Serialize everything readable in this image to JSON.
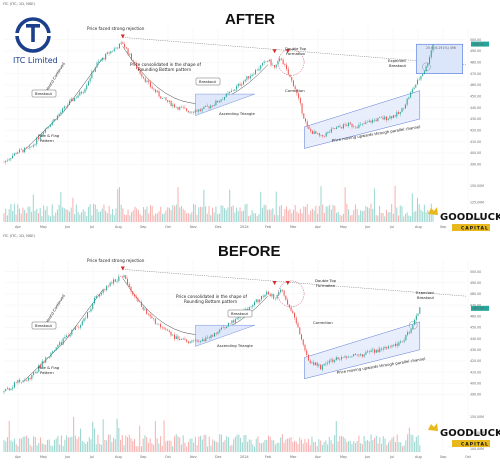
{
  "brand": {
    "logo_name": "itc-logo",
    "logo_color": "#1c3f8c",
    "company_name": "ITC Limited",
    "watermark_brand": "GOODLUCK",
    "watermark_sub": "CAPITAL",
    "watermark_color": "#e8b91c"
  },
  "colors": {
    "up": "#26a69a",
    "down": "#ef5350",
    "channel_fill": "#dfe7fb",
    "channel_line": "#5b7bd6",
    "guide_line": "#222222",
    "signal": "#d62828"
  },
  "chart_data": [
    {
      "type": "candlestick",
      "title": "AFTER",
      "header": "ITC (ITC, 1D, NSE)",
      "x_ticks": [
        "Apr",
        "May",
        "Jun",
        "Jul",
        "Aug",
        "Sep",
        "Oct",
        "Nov",
        "Dec",
        "2024",
        "Feb",
        "Mar",
        "Apr",
        "May",
        "Jun",
        "Jul",
        "Aug",
        "Sep",
        "Oct"
      ],
      "price_ticks": [
        "500.00",
        "490.00",
        "480.00",
        "470.00",
        "460.00",
        "450.00",
        "440.00",
        "430.00",
        "420.00",
        "410.00",
        "400.00",
        "390.00"
      ],
      "volume_ticks": [
        "150.00M",
        "125.00M",
        "100.00M"
      ],
      "ylim": [
        385,
        505
      ],
      "current_price_label": "496.40",
      "target_box_label": "25.6 (6.291%) 496",
      "annotations": {
        "rejection": "Price faced strong rejection",
        "rounding_line1": "Price consolidated in the shape of",
        "rounding_line2": "Rounding Bottom pattern",
        "double_top_line1": "Double Top",
        "double_top_line2": "Formation",
        "uptrend": "Uptrend Continued",
        "breakout": "Breakout",
        "pole_flag_line1": "Pole & Flag",
        "pole_flag_line2": "Pattern",
        "ascending_triangle": "Ascending Triangle",
        "correction": "Correction",
        "channel": "Price moving upwards through parallel channel",
        "expected_line1": "Expected",
        "expected_line2": "Breakout"
      },
      "price_path": [
        [
          0,
          392
        ],
        [
          2,
          401
        ],
        [
          4,
          404
        ],
        [
          6,
          420
        ],
        [
          8,
          432
        ],
        [
          10,
          445
        ],
        [
          12,
          455
        ],
        [
          14,
          478
        ],
        [
          16,
          489
        ],
        [
          18,
          497
        ],
        [
          20,
          476
        ],
        [
          22,
          460
        ],
        [
          24,
          448
        ],
        [
          26,
          441
        ],
        [
          28,
          437
        ],
        [
          30,
          438
        ],
        [
          32,
          444
        ],
        [
          34,
          452
        ],
        [
          36,
          462
        ],
        [
          38,
          472
        ],
        [
          40,
          482
        ],
        [
          41,
          475
        ],
        [
          42,
          484
        ],
        [
          43,
          470
        ],
        [
          44,
          459
        ],
        [
          46,
          421
        ],
        [
          48,
          414
        ],
        [
          50,
          421
        ],
        [
          52,
          425
        ],
        [
          54,
          424
        ],
        [
          56,
          429
        ],
        [
          58,
          431
        ],
        [
          60,
          435
        ],
        [
          62,
          457
        ],
        [
          64,
          476
        ],
        [
          65,
          496
        ]
      ]
    },
    {
      "type": "candlestick",
      "title": "BEFORE",
      "header": "ITC (ITC, 1D, NSE)",
      "x_ticks": [
        "Apr",
        "May",
        "Jun",
        "Jul",
        "Aug",
        "Sep",
        "Oct",
        "Nov",
        "Dec",
        "2024",
        "Feb",
        "Mar",
        "Apr",
        "May",
        "Jun",
        "Jul",
        "Aug",
        "Sep",
        "Oct"
      ],
      "price_ticks": [
        "500.00",
        "490.00",
        "480.00",
        "470.00",
        "460.00",
        "450.00",
        "440.00",
        "430.00",
        "420.00",
        "410.00",
        "400.00",
        "390.00"
      ],
      "volume_ticks": [
        "150.00M",
        "125.00M",
        "100.00M"
      ],
      "ylim": [
        385,
        505
      ],
      "current_price_label": "467.40",
      "annotations": {
        "rejection": "Price faced strong rejection",
        "rounding_line1": "Price consolidated in the shape of",
        "rounding_line2": "Rounding Bottom pattern",
        "double_top_line1": "Double Top",
        "double_top_line2": "Formation",
        "uptrend": "Uptrend Continued",
        "breakout": "Breakout",
        "pole_flag_line1": "Pole & Flag",
        "pole_flag_line2": "Pattern",
        "ascending_triangle": "Ascending Triangle",
        "correction": "Correction",
        "channel": "Price moving upwards through parallel channel",
        "expected_line1": "Expected",
        "expected_line2": "Breakout"
      },
      "price_path": [
        [
          0,
          392
        ],
        [
          2,
          401
        ],
        [
          4,
          404
        ],
        [
          6,
          420
        ],
        [
          8,
          432
        ],
        [
          10,
          445
        ],
        [
          12,
          455
        ],
        [
          14,
          478
        ],
        [
          16,
          489
        ],
        [
          18,
          497
        ],
        [
          20,
          476
        ],
        [
          22,
          460
        ],
        [
          24,
          448
        ],
        [
          26,
          441
        ],
        [
          28,
          437
        ],
        [
          30,
          438
        ],
        [
          32,
          444
        ],
        [
          34,
          452
        ],
        [
          36,
          462
        ],
        [
          38,
          472
        ],
        [
          40,
          482
        ],
        [
          41,
          475
        ],
        [
          42,
          484
        ],
        [
          43,
          470
        ],
        [
          44,
          459
        ],
        [
          46,
          421
        ],
        [
          48,
          414
        ],
        [
          50,
          421
        ],
        [
          52,
          425
        ],
        [
          54,
          424
        ],
        [
          56,
          429
        ],
        [
          58,
          431
        ],
        [
          60,
          435
        ],
        [
          62,
          452
        ],
        [
          63,
          467
        ]
      ]
    }
  ]
}
